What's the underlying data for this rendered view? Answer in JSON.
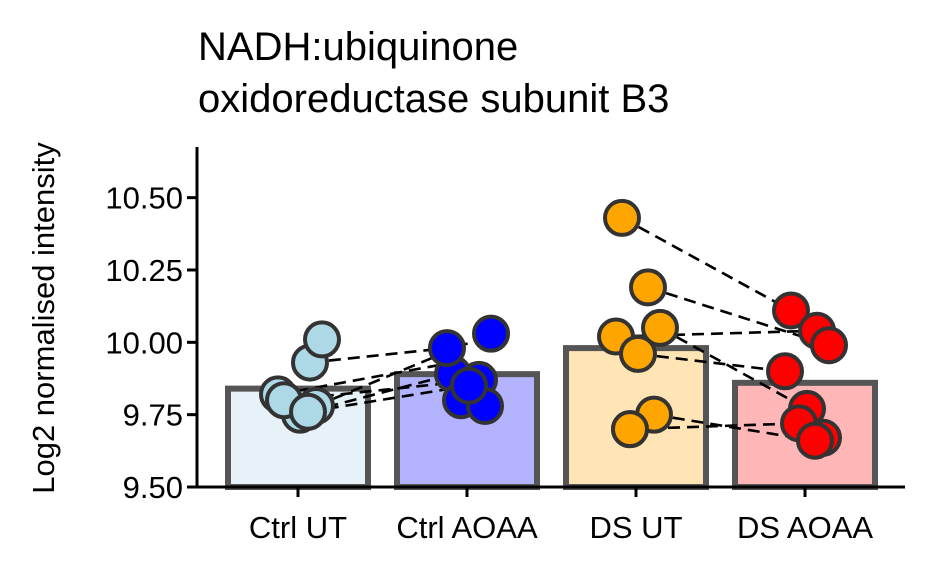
{
  "chart_data": {
    "type": "bar",
    "title_lines": [
      "NADH:ubiquinone",
      "oxidoreductase subunit B3"
    ],
    "xlabel": "",
    "ylabel": "Log2 normalised intensity",
    "ylim": [
      9.5,
      10.675
    ],
    "y_ticks": [
      9.5,
      9.75,
      10.0,
      10.25,
      10.5
    ],
    "y_tick_labels": [
      "9.50",
      "9.75",
      "10.00",
      "10.25",
      "10.50"
    ],
    "categories": [
      "Ctrl UT",
      "Ctrl AOAA",
      "DS UT",
      "DS AOAA"
    ],
    "values": [
      9.84,
      9.89,
      9.98,
      9.86
    ],
    "bar_colors": [
      "#e6f1f8",
      "#b3b3ff",
      "#ffe4b5",
      "#ffb6b6"
    ],
    "point_colors": [
      "#add8e6",
      "#0000ff",
      "#ffa500",
      "#ff0000"
    ],
    "points": [
      [
        9.8,
        9.93,
        10.01,
        9.82,
        9.75,
        9.8,
        9.78,
        9.76
      ],
      [
        9.89,
        9.87,
        10.03,
        9.98,
        9.85,
        9.8,
        9.78,
        9.85
      ],
      [
        10.43,
        10.19,
        10.05,
        10.02,
        9.96,
        9.7,
        9.75,
        9.7
      ],
      [
        10.11,
        10.04,
        9.99,
        9.9,
        9.77,
        9.72,
        9.67,
        9.66
      ]
    ],
    "pairs": [
      [
        [
          9.8,
          9.87
        ],
        [
          9.76,
          9.85
        ],
        [
          9.93,
          9.98
        ],
        [
          9.78,
          10.03
        ],
        [
          9.76,
          9.89
        ],
        [
          9.82,
          9.93
        ]
      ],
      [
        [
          10.43,
          10.11
        ],
        [
          10.02,
          10.04
        ],
        [
          9.96,
          9.9
        ],
        [
          10.19,
          9.99
        ],
        [
          9.7,
          9.72
        ],
        [
          9.75,
          9.66
        ],
        [
          10.05,
          9.77
        ]
      ]
    ],
    "grid": false,
    "legend": "none"
  }
}
